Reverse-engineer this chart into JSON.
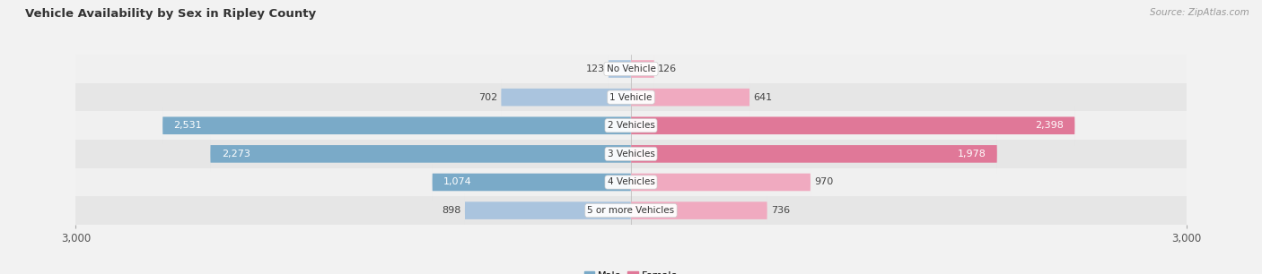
{
  "title": "Vehicle Availability by Sex in Ripley County",
  "source": "Source: ZipAtlas.com",
  "categories": [
    "No Vehicle",
    "1 Vehicle",
    "2 Vehicles",
    "3 Vehicles",
    "4 Vehicles",
    "5 or more Vehicles"
  ],
  "male_values": [
    123,
    702,
    2531,
    2273,
    1074,
    898
  ],
  "female_values": [
    126,
    641,
    2398,
    1978,
    970,
    736
  ],
  "male_color_small": "#aac4de",
  "male_color_large": "#7aaac8",
  "female_color_small": "#f0aac0",
  "female_color_large": "#e07898",
  "axis_max": 3000,
  "bar_height": 0.62,
  "row_colors": [
    "#f0f0f0",
    "#e6e6e6"
  ],
  "title_fontsize": 9.5,
  "val_fontsize": 8,
  "cat_fontsize": 7.5,
  "source_fontsize": 7.5,
  "legend_fontsize": 8,
  "large_threshold": 1000
}
